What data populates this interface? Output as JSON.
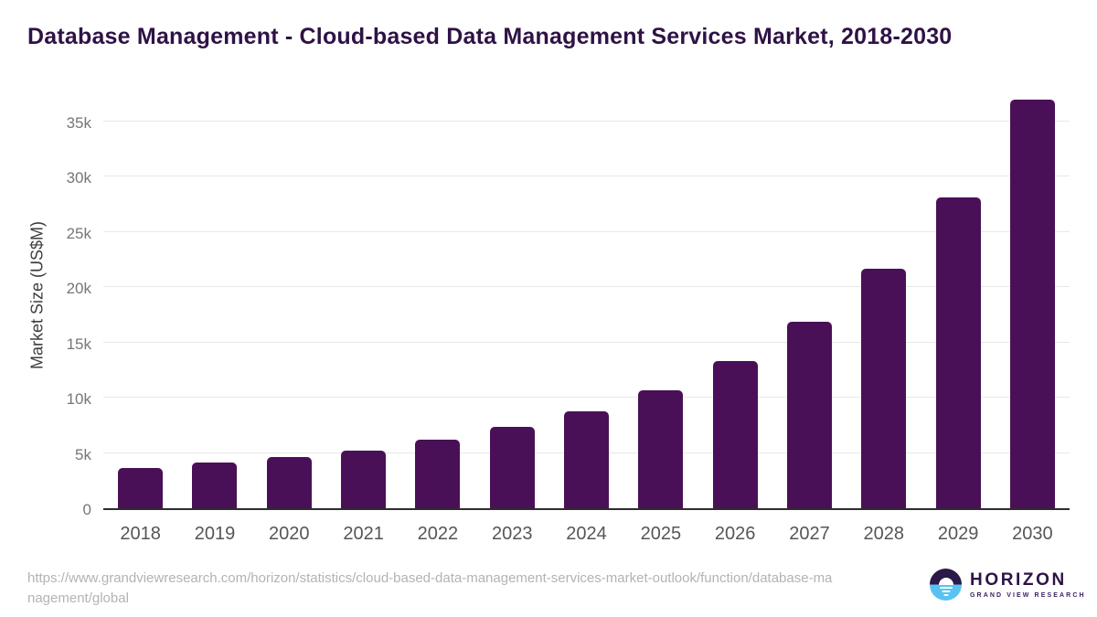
{
  "header": {
    "title": "Database Management - Cloud-based Data Management Services Market, 2018-2030"
  },
  "chart_data": {
    "type": "bar",
    "title": "Database Management - Cloud-based Data Management Services Market, 2018-2030",
    "categories": [
      "2018",
      "2019",
      "2020",
      "2021",
      "2022",
      "2023",
      "2024",
      "2025",
      "2026",
      "2027",
      "2028",
      "2029",
      "2030"
    ],
    "values": [
      3600,
      4100,
      4600,
      5200,
      6200,
      7400,
      8800,
      10700,
      13300,
      16900,
      21700,
      28100,
      37000
    ],
    "xlabel": "",
    "ylabel": "Market Size (US$M)",
    "ylim": [
      0,
      37500
    ],
    "yticks": [
      0,
      5000,
      10000,
      15000,
      20000,
      25000,
      30000,
      35000
    ],
    "ytick_labels": [
      "0",
      "5k",
      "10k",
      "15k",
      "20k",
      "25k",
      "30k",
      "35k"
    ],
    "grid": "horizontal-light",
    "legend": null,
    "bar_color": "#4A1057"
  },
  "footer": {
    "source_url": "https://www.grandviewresearch.com/horizon/statistics/cloud-based-data-management-services-market-outlook/function/database-management/global",
    "source_url_lines": [
      "https://www.grandviewresearch.com/horizon/statistics/cloud-based-data-management-services-market-outlook/function/database-ma",
      "nagement/global"
    ],
    "logo": {
      "name": "HORIZON",
      "subtitle": "GRAND VIEW RESEARCH",
      "icon": "horizon-sun-over-water-icon"
    }
  },
  "colors": {
    "title": "#2E1245",
    "bar": "#4A1057",
    "axis_line": "#2D2D2D",
    "gridline": "#E8E8E8",
    "y_tick_text": "#767676",
    "x_tick_text": "#565656",
    "url_text": "#B3B3B3",
    "logo_dark": "#2B1947",
    "logo_light": "#58C3F3"
  }
}
